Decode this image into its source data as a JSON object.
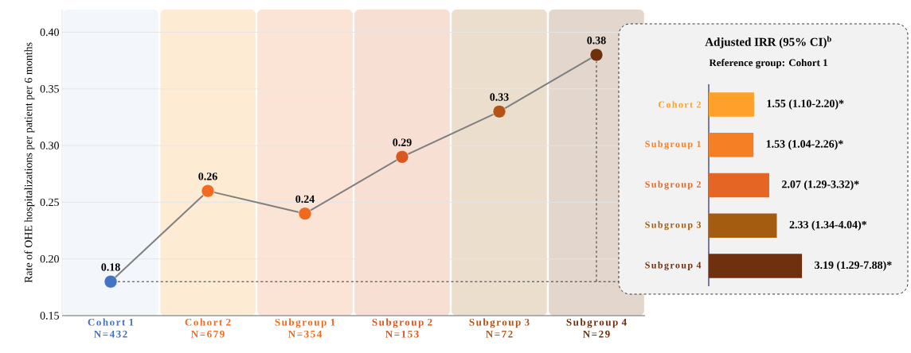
{
  "chart_data": [
    {
      "type": "line",
      "ylabel": "Rate of OHE hospitalizations per patient per 6 months",
      "categories": [
        "Cohort 1 N=432",
        "Cohort 2 N=679",
        "Subgroup 1 N=354",
        "Subgroup 2 N=153",
        "Subgroup 3 N=72",
        "Subgroup 4 N=29"
      ],
      "values": [
        0.18,
        0.26,
        0.24,
        0.29,
        0.33,
        0.38
      ],
      "color": "#7f7f7f",
      "colors": [
        "#4472c4",
        "#f26b21",
        "#ed6a1f",
        "#d9581e",
        "#b45314",
        "#6f300c"
      ],
      "marker": "circle",
      "data_labels": true,
      "grid": "y",
      "ylim": [
        0.15,
        0.42
      ],
      "yticks": [
        {
          "value": 0.15,
          "label": "0.15"
        },
        {
          "value": 0.2,
          "label": "0.20"
        },
        0.25,
        {
          "value": 0.3,
          "label": "0.30"
        },
        0.35,
        {
          "value": 0.4,
          "label": "0.40"
        }
      ],
      "bands": [
        {
          "axis": "x",
          "from": "Cohort 1 N=432",
          "to": "Cohort 1 N=432",
          "color": "#f3f6fb"
        },
        {
          "axis": "x",
          "from": "Cohort 2 N=679",
          "to": "Cohort 2 N=679",
          "color": "#fdebd3"
        },
        {
          "axis": "x",
          "from": "Subgroup 1 N=354",
          "to": "Subgroup 1 N=354",
          "color": "#fbe4d6"
        },
        {
          "axis": "x",
          "from": "Subgroup 2 N=153",
          "to": "Subgroup 2 N=153",
          "color": "#f8dfd4"
        },
        {
          "axis": "x",
          "from": "Subgroup 3 N=72",
          "to": "Subgroup 3 N=72",
          "color": "#ebdecd"
        },
        {
          "axis": "x",
          "from": "Subgroup 4 N=29",
          "to": "Subgroup 4 N=29",
          "color": "#e3d6cc"
        }
      ],
      "ref_lines": [
        {
          "axis": "y",
          "value": 0.18,
          "color": "#333333",
          "line_style": "dashed"
        },
        {
          "axis": "x",
          "value": "Subgroup 4 N=29",
          "color": "#333333",
          "line_style": "dashed"
        }
      ]
    },
    {
      "type": "bar",
      "orientation": "horizontal",
      "title": "Adjusted IRR (95% CI)$^{b}$",
      "subtitle": "Reference group: Cohort 1",
      "categories": [
        "Cohort 2",
        "Subgroup 1",
        "Subgroup 2",
        "Subgroup 3",
        "Subgroup 4"
      ],
      "values": [
        1.55,
        1.53,
        2.07,
        2.33,
        3.19
      ],
      "colors": [
        "#ffa02a",
        "#f47f25",
        "#e56525",
        "#a45c10",
        "#6e300f"
      ],
      "value_labels": [
        "1.55 (1.10-2.20)*",
        "1.53 (1.04-2.26)*",
        "2.07 (1.29-3.32)*",
        "2.33 (1.34-4.04)*",
        "3.19 (1.29-7.88)*"
      ],
      "tick_labels": "y"
    }
  ]
}
